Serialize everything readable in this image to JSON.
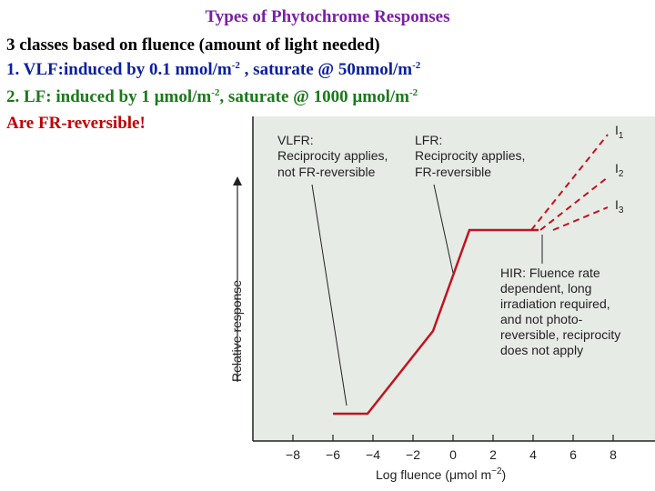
{
  "title": "Types of Phytochrome Responses",
  "lines": {
    "l1": "3 classes based on fluence (amount of light needed)",
    "l2_a": "1.  VLF:induced by 0.1 nmol/m",
    "l2_sup1": "-2",
    "l2_b": " , saturate @  50nmol/m",
    "l2_sup2": "-2",
    "l3_a": "2. LF: induced by 1 µmol/m",
    "l3_sup1": "-2",
    "l3_b": ", saturate @  1000 µmol/m",
    "l3_sup2": "-2",
    "l4": "Are FR-reversible!"
  },
  "diagram": {
    "vlfr": [
      "VLFR:",
      "Reciprocity applies,",
      "not FR-reversible"
    ],
    "lfr": [
      "LFR:",
      "Reciprocity applies,",
      "FR-reversible"
    ],
    "hir": [
      "HIR: Fluence rate",
      "dependent, long",
      "irradiation required,",
      "and not photo-",
      "reversible, reciprocity",
      "does not apply"
    ],
    "ylabel": "Relative response",
    "xlabel": "Log fluence (μmol m",
    "xlabel_sup": "−2",
    "xlabel_end": ")",
    "x_ticks": [
      "−8",
      "−6",
      "−4",
      "−2",
      "0",
      "2",
      "4",
      "6",
      "8"
    ],
    "irradiance_labels": [
      {
        "base": "I",
        "sub": "1"
      },
      {
        "base": "I",
        "sub": "2"
      },
      {
        "base": "I",
        "sub": "3"
      }
    ],
    "colors": {
      "curve": "#c0141e",
      "panel": "#e7ebe6",
      "text": "#222222"
    }
  }
}
